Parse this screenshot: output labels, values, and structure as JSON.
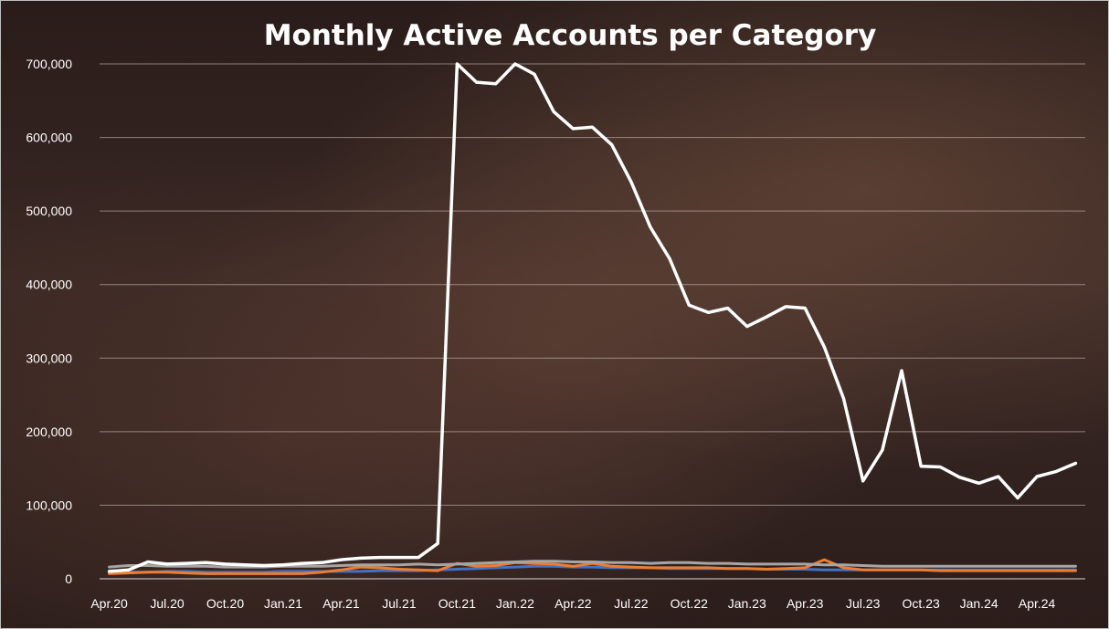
{
  "chart_data": {
    "type": "line",
    "title": "Monthly Active Accounts per Category",
    "xlabel": "",
    "ylabel": "",
    "ylim": [
      0,
      700000
    ],
    "yticks": [
      "0",
      "100,000",
      "200,000",
      "300,000",
      "400,000",
      "500,000",
      "600,000",
      "700,000"
    ],
    "ytick_values": [
      0,
      100000,
      200000,
      300000,
      400000,
      500000,
      600000,
      700000
    ],
    "xticks": [
      "Apr.20",
      "Jul.20",
      "Oct.20",
      "Jan.21",
      "Apr.21",
      "Jul.21",
      "Oct.21",
      "Jan.22",
      "Apr.22",
      "Jul.22",
      "Oct.22",
      "Jan.23",
      "Apr.23",
      "Jul.23",
      "Oct.23",
      "Jan.24",
      "Apr.24"
    ],
    "grid": true,
    "legend": "none",
    "series": [
      {
        "color": "#ffffff",
        "values": [
          10000,
          12000,
          23000,
          20000,
          21000,
          22000,
          20000,
          19000,
          18000,
          19000,
          21000,
          22000,
          26000,
          28000,
          29000,
          29000,
          29000,
          48000,
          700000,
          675000,
          673000,
          700000,
          686000,
          635000,
          612000,
          614000,
          590000,
          540000,
          478000,
          435000,
          372000,
          362000,
          368000,
          343000,
          356000,
          370000,
          368000,
          315000,
          245000,
          133000,
          175000,
          283000,
          153000,
          152000,
          138000,
          130000,
          139000,
          110000,
          139000,
          146000,
          157000
        ]
      },
      {
        "color": "#a6a6a6",
        "values": [
          16000,
          18000,
          18000,
          17000,
          17000,
          17000,
          16000,
          16000,
          16000,
          17000,
          17000,
          17000,
          18000,
          19000,
          19000,
          19000,
          20000,
          19000,
          20000,
          21000,
          22000,
          23000,
          24000,
          24000,
          23000,
          23000,
          22000,
          22000,
          21000,
          22000,
          22000,
          21000,
          21000,
          20000,
          20000,
          20000,
          20000,
          19000,
          19000,
          18000,
          17000,
          17000,
          17000,
          17000,
          17000,
          17000,
          17000,
          17000,
          17000,
          17000,
          17000
        ]
      },
      {
        "color": "#ed7d31",
        "values": [
          7000,
          8000,
          9000,
          9000,
          8000,
          7000,
          7000,
          7000,
          7000,
          7000,
          7000,
          9000,
          12000,
          16000,
          15000,
          13000,
          12000,
          11000,
          21000,
          17000,
          18000,
          22000,
          21000,
          20000,
          17000,
          21000,
          17000,
          16000,
          15000,
          15000,
          15000,
          15000,
          14000,
          14000,
          13000,
          14000,
          15000,
          26000,
          15000,
          12000,
          12000,
          12000,
          12000,
          11000,
          11000,
          11000,
          11000,
          11000,
          11000,
          11000,
          11000
        ]
      },
      {
        "color": "#4472c4",
        "values": [
          9000,
          9000,
          9000,
          10000,
          10000,
          9000,
          9000,
          9000,
          9000,
          10000,
          10000,
          10000,
          10000,
          10000,
          11000,
          11000,
          11000,
          12000,
          13000,
          14000,
          15000,
          16000,
          17000,
          17000,
          16000,
          16000,
          15000,
          15000,
          15000,
          14000,
          14000,
          14000,
          14000,
          14000,
          13000,
          13000,
          13000,
          12000,
          12000,
          12000,
          12000,
          12000,
          12000,
          12000,
          12000,
          12000,
          12000,
          12000,
          12000,
          12000,
          12000
        ]
      }
    ]
  }
}
